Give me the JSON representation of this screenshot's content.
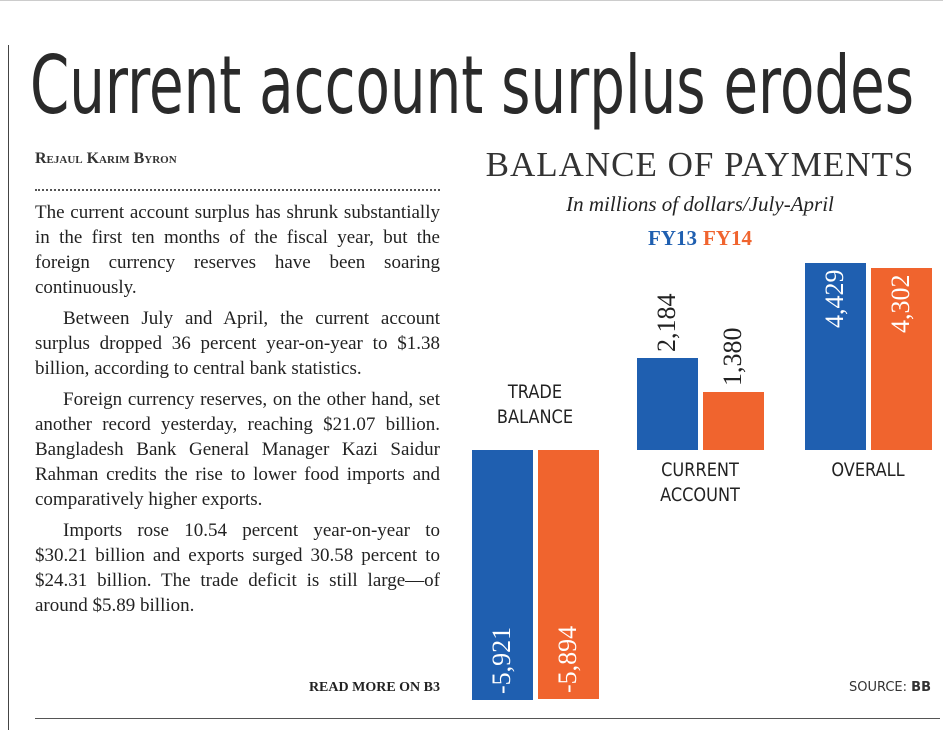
{
  "header": {
    "title": "Current account surplus erodes"
  },
  "article": {
    "byline": "Rejaul Karim Byron",
    "paragraphs": [
      "The current account surplus has shrunk substantially in the first ten months of the fiscal year, but the foreign currency reserves have been soaring continuously.",
      "Between July and April, the current account surplus dropped 36 percent year-on-year to $1.38 billion, according to central bank statistics.",
      "Foreign currency reserves, on the other hand, set another record yesterday, reaching $21.07 billion. Bangladesh Bank General Manager Kazi Saidur Rahman credits the rise to lower food imports and comparatively higher exports.",
      "Imports rose 10.54 percent year-on-year to $30.21 billion and exports surged 30.58 percent to $24.31 billion. The trade deficit is still large—of around $5.89 billion."
    ],
    "read_more": "READ MORE ON B3"
  },
  "chart_data": {
    "type": "bar",
    "title": "BALANCE OF PAYMENTS",
    "subtitle": "In millions of dollars/July-April",
    "categories": [
      "TRADE BALANCE",
      "CURRENT ACCOUNT",
      "OVERALL"
    ],
    "series": [
      {
        "name": "FY13",
        "color": "#1f5fb0",
        "values": [
          -5921,
          2184,
          4429
        ],
        "value_labels": [
          "-5,921",
          "2,184",
          "4,429"
        ]
      },
      {
        "name": "FY14",
        "color": "#f0642e",
        "values": [
          -5894,
          1380,
          4302
        ],
        "value_labels": [
          "-5,894",
          "1,380",
          "4,302"
        ]
      }
    ],
    "source": {
      "label": "SOURCE:",
      "name": "BB"
    }
  }
}
